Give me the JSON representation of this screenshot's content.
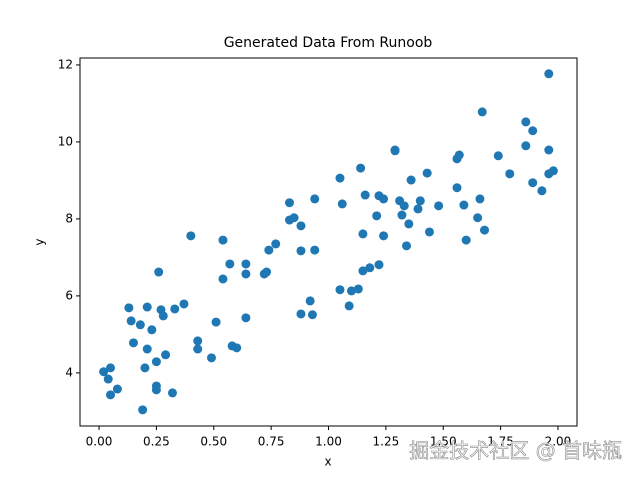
{
  "chart_data": {
    "type": "scatter",
    "title": "Generated Data From Runoob",
    "x_label": "x",
    "y_label": "y",
    "x": [
      0.02,
      0.05,
      0.04,
      0.05,
      0.08,
      0.13,
      0.14,
      0.15,
      0.18,
      0.19,
      0.2,
      0.21,
      0.21,
      0.23,
      0.25,
      0.25,
      0.25,
      0.26,
      0.27,
      0.28,
      0.29,
      0.32,
      0.33,
      0.37,
      0.4,
      0.43,
      0.43,
      0.49,
      0.51,
      0.54,
      0.54,
      0.57,
      0.58,
      0.6,
      0.64,
      0.64,
      0.64,
      0.72,
      0.73,
      0.74,
      0.77,
      0.83,
      0.83,
      0.85,
      0.88,
      0.88,
      0.88,
      0.92,
      0.93,
      0.94,
      0.94,
      1.05,
      1.05,
      1.06,
      1.09,
      1.1,
      1.13,
      1.14,
      1.15,
      1.15,
      1.16,
      1.18,
      1.21,
      1.22,
      1.22,
      1.24,
      1.24,
      1.29,
      1.29,
      1.31,
      1.32,
      1.33,
      1.34,
      1.35,
      1.36,
      1.39,
      1.4,
      1.43,
      1.44,
      1.48,
      1.56,
      1.57,
      1.56,
      1.59,
      1.6,
      1.65,
      1.66,
      1.67,
      1.68,
      1.74,
      1.79,
      1.86,
      1.86,
      1.89,
      1.89,
      1.93,
      1.96,
      1.96,
      1.96,
      1.98
    ],
    "values": [
      4.03,
      4.13,
      3.84,
      3.43,
      3.58,
      5.69,
      5.35,
      4.78,
      5.25,
      3.04,
      4.13,
      5.71,
      4.62,
      5.12,
      3.66,
      4.29,
      3.56,
      6.62,
      5.64,
      5.48,
      4.47,
      3.48,
      5.66,
      5.79,
      7.56,
      4.62,
      4.83,
      4.39,
      5.32,
      7.45,
      6.44,
      6.83,
      4.7,
      4.65,
      6.83,
      6.57,
      5.43,
      6.57,
      6.62,
      7.19,
      7.35,
      8.42,
      7.97,
      8.03,
      7.82,
      7.17,
      5.53,
      5.87,
      5.51,
      7.19,
      8.52,
      9.06,
      6.16,
      8.39,
      5.74,
      6.13,
      6.18,
      9.32,
      7.61,
      6.65,
      8.62,
      6.73,
      8.08,
      6.81,
      8.6,
      8.52,
      7.56,
      9.79,
      9.77,
      8.47,
      8.1,
      8.34,
      7.3,
      7.87,
      9.01,
      8.26,
      8.47,
      9.19,
      7.66,
      8.34,
      9.56,
      9.66,
      8.81,
      8.36,
      7.45,
      8.03,
      8.52,
      10.78,
      7.71,
      9.64,
      9.17,
      10.52,
      9.9,
      10.29,
      8.94,
      8.73,
      9.79,
      9.17,
      11.77,
      9.25
    ],
    "color": "#1f77b4",
    "xlim": [
      -0.083,
      2.083
    ],
    "ylim": [
      2.62,
      12.18
    ],
    "xticks": [
      {
        "value": 0,
        "label": "0.00"
      },
      {
        "value": 0.25,
        "label": "0.25"
      },
      {
        "value": 0.5,
        "label": "0.50"
      },
      {
        "value": 0.75,
        "label": "0.75"
      },
      {
        "value": 1,
        "label": "1.00"
      },
      {
        "value": 1.25,
        "label": "1.25"
      },
      {
        "value": 1.5,
        "label": "1.50"
      },
      {
        "value": 1.75,
        "label": "1.75"
      },
      {
        "value": 2,
        "label": "2.00"
      }
    ],
    "yticks": [
      4,
      6,
      8,
      10,
      12
    ]
  },
  "watermark": "掘金技术社区 @ 首味瓶"
}
